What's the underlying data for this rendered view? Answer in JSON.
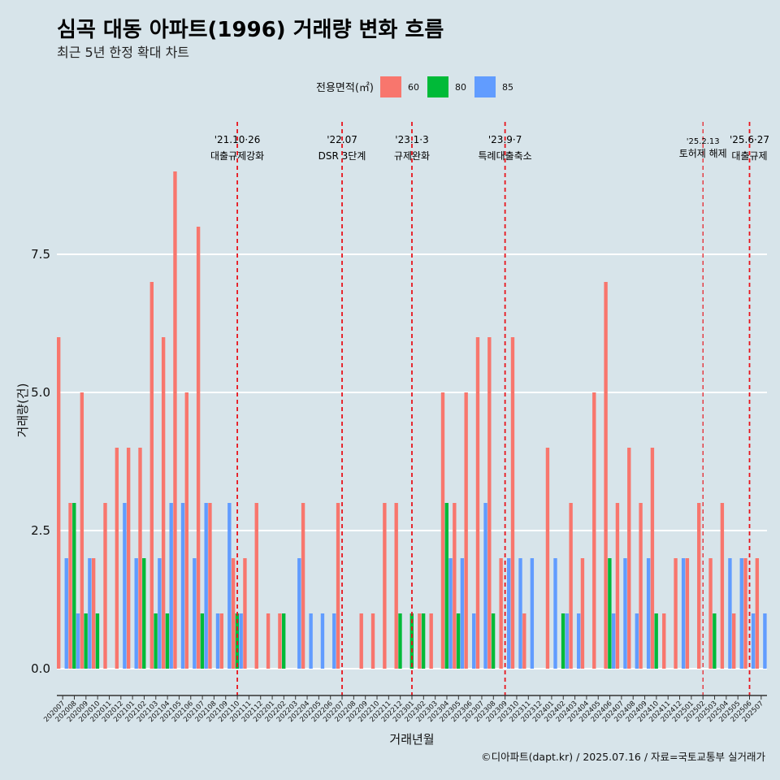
{
  "chart_data": {
    "type": "bar",
    "title": "심곡 대동 아파트(1996) 거래량 변화 흐름",
    "subtitle": "최근 5년 한정 확대 차트",
    "xlabel": "거래년월",
    "ylabel": "거래량(건)",
    "ylim": [
      -0.3,
      10
    ],
    "yticks": [
      0.0,
      2.5,
      5.0,
      7.5
    ],
    "ytick_labels": [
      "0.0",
      "2.5",
      "5.0",
      "7.5"
    ],
    "grid": true,
    "legend": {
      "title": "전용면적(㎡)",
      "position": "top",
      "entries": [
        "60",
        "80",
        "85"
      ]
    },
    "colors": {
      "60": "#f8766d",
      "80": "#00ba38",
      "85": "#619cff"
    },
    "categories": [
      "202007",
      "202008",
      "202009",
      "202010",
      "202011",
      "202012",
      "202101",
      "202102",
      "202103",
      "202104",
      "202105",
      "202106",
      "202107",
      "202108",
      "202109",
      "202110",
      "202111",
      "202112",
      "202201",
      "202202",
      "202203",
      "202204",
      "202205",
      "202206",
      "202207",
      "202208",
      "202209",
      "202210",
      "202211",
      "202212",
      "202301",
      "202302",
      "202303",
      "202304",
      "202305",
      "202306",
      "202307",
      "202308",
      "202309",
      "202310",
      "202311",
      "202312",
      "202401",
      "202402",
      "202403",
      "202404",
      "202405",
      "202406",
      "202407",
      "202408",
      "202409",
      "202410",
      "202411",
      "202412",
      "202501",
      "202502",
      "202503",
      "202504",
      "202505",
      "202506",
      "202507"
    ],
    "series": [
      {
        "name": "60",
        "values": [
          6,
          3,
          5,
          2,
          3,
          4,
          4,
          4,
          7,
          6,
          9,
          5,
          8,
          3,
          1,
          2,
          2,
          3,
          1,
          1,
          0,
          3,
          0,
          0,
          3,
          0,
          1,
          1,
          3,
          3,
          0,
          1,
          1,
          5,
          3,
          5,
          6,
          6,
          2,
          6,
          1,
          0,
          4,
          0,
          3,
          2,
          5,
          7,
          3,
          4,
          3,
          4,
          1,
          2,
          2,
          3,
          2,
          3,
          1,
          2,
          2
        ]
      },
      {
        "name": "80",
        "values": [
          0,
          3,
          1,
          1,
          0,
          0,
          0,
          2,
          1,
          1,
          0,
          0,
          1,
          0,
          0,
          1,
          0,
          0,
          0,
          1,
          0,
          0,
          0,
          0,
          0,
          0,
          0,
          0,
          0,
          1,
          1,
          1,
          0,
          3,
          1,
          0,
          0,
          1,
          0,
          0,
          0,
          0,
          0,
          1,
          0,
          0,
          0,
          2,
          0,
          0,
          0,
          1,
          0,
          0,
          0,
          0,
          1,
          0,
          0,
          0,
          0
        ]
      },
      {
        "name": "85",
        "values": [
          2,
          1,
          2,
          0,
          0,
          3,
          2,
          0,
          2,
          3,
          3,
          2,
          3,
          1,
          3,
          1,
          0,
          0,
          0,
          0,
          2,
          1,
          1,
          1,
          0,
          0,
          0,
          0,
          0,
          0,
          0,
          0,
          0,
          2,
          2,
          1,
          3,
          0,
          2,
          2,
          2,
          0,
          2,
          1,
          1,
          0,
          0,
          1,
          2,
          1,
          2,
          0,
          0,
          2,
          0,
          0,
          0,
          2,
          2,
          1,
          1
        ]
      }
    ],
    "annotations": [
      {
        "date": "'21.10·26",
        "label": "대출규제강화",
        "category": "202110",
        "size": "normal"
      },
      {
        "date": "'22.07",
        "label": "DSR 3단계",
        "category": "202207",
        "size": "normal"
      },
      {
        "date": "'23.1·3",
        "label": "규제완화",
        "category": "202301",
        "size": "normal"
      },
      {
        "date": "'23.9·7",
        "label": "특례대출축소",
        "category": "202309",
        "size": "normal"
      },
      {
        "date": "'25.2.13",
        "label": "토허제 해제",
        "category": "202502",
        "size": "small"
      },
      {
        "date": "'25.6·27",
        "label": "대출규제",
        "category": "202506",
        "size": "normal"
      }
    ],
    "caption": "©디아파트(dapt.kr) / 2025.07.16 / 자료=국토교통부 실거래가"
  }
}
